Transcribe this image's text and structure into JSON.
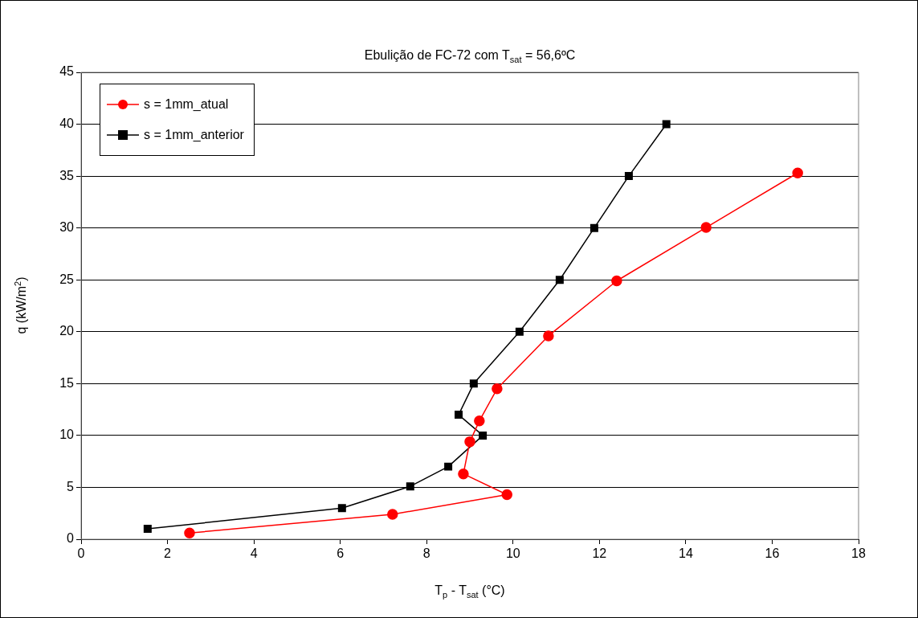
{
  "chart_data": {
    "type": "line",
    "title": "Ebulição de FC-72 com T$_{sat}$ = 56,6ºC",
    "xlabel": "T$_{p}$ - T$_{sat}$ (°C)",
    "ylabel": "q (kW/m$^{2}$)",
    "xlim": [
      0,
      18
    ],
    "xticks": [
      0,
      2,
      4,
      6,
      8,
      10,
      12,
      14,
      16,
      18
    ],
    "ylim": [
      0,
      45
    ],
    "yticks": [
      0,
      5,
      10,
      15,
      20,
      25,
      30,
      35,
      40,
      45
    ],
    "grid": "y",
    "legend": "top left",
    "series": [
      {
        "name": "s = 1mm_atual",
        "color": "#ff0000",
        "marker": "circle",
        "x": [
          2.51,
          7.21,
          9.86,
          8.85,
          9.0,
          9.22,
          9.63,
          10.82,
          12.4,
          14.47,
          16.59
        ],
        "values": [
          0.6,
          2.4,
          4.3,
          6.3,
          9.4,
          11.4,
          14.5,
          19.6,
          24.9,
          30.05,
          35.3
        ]
      },
      {
        "name": "s = 1mm_anterior",
        "color": "#000000",
        "marker": "square",
        "x": [
          1.54,
          6.04,
          7.62,
          8.5,
          9.3,
          8.74,
          9.09,
          10.15,
          11.08,
          11.88,
          12.68,
          13.55
        ],
        "values": [
          1.0,
          3.0,
          5.1,
          7.0,
          10.0,
          12.0,
          15.0,
          20.0,
          25.0,
          30.0,
          35.0,
          40.0
        ]
      }
    ]
  }
}
